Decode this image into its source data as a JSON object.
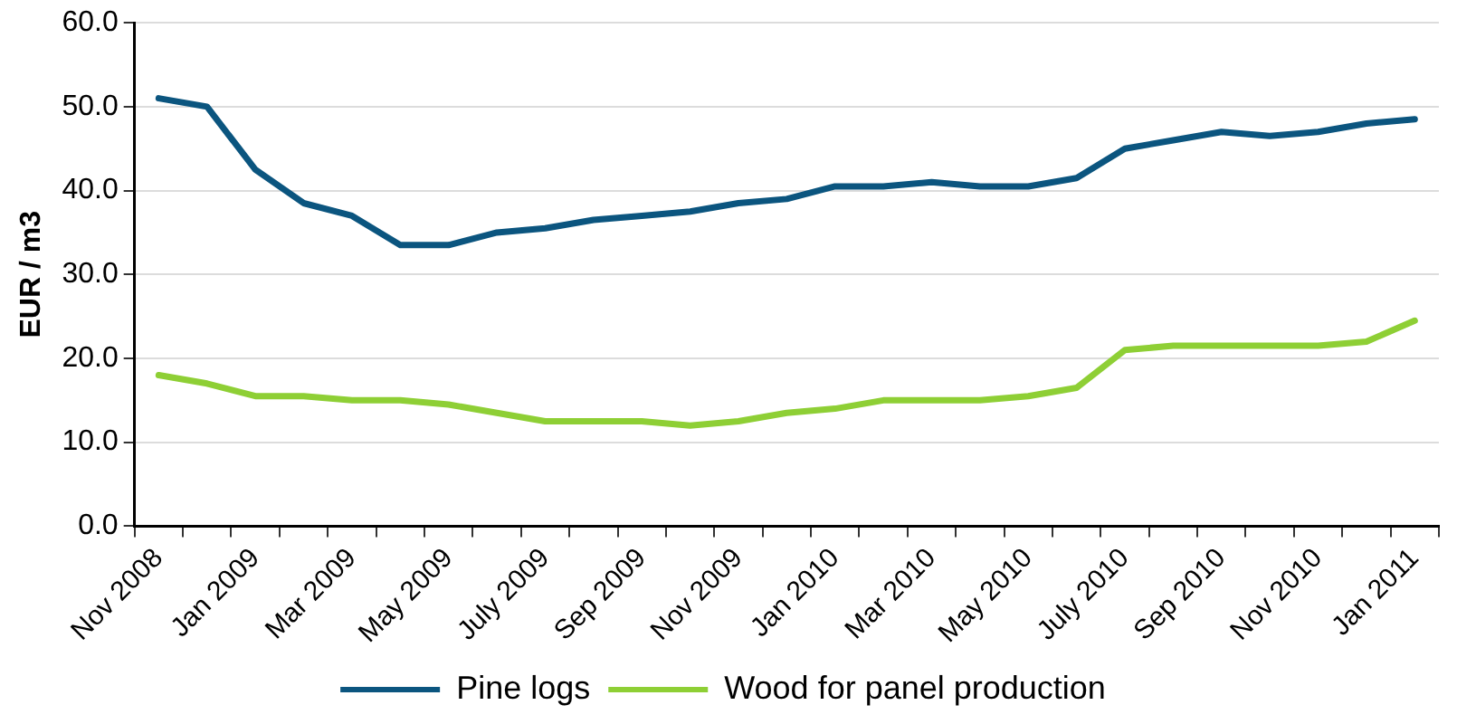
{
  "chart_data": {
    "type": "line",
    "ylabel": "EUR / m3",
    "categories": [
      "Nov 2008",
      null,
      "Jan 2009",
      null,
      "Mar 2009",
      null,
      "May 2009",
      null,
      "July 2009",
      null,
      "Sep 2009",
      null,
      "Nov 2009",
      null,
      "Jan 2010",
      null,
      "Mar 2010",
      null,
      "May 2010",
      null,
      "July 2010",
      null,
      "Sep 2010",
      null,
      "Nov 2010",
      null,
      "Jan 2011"
    ],
    "series": [
      {
        "name": "Pine logs",
        "color": "#0b557f",
        "values": [
          51,
          50,
          42.5,
          38.5,
          37,
          33.5,
          33.5,
          35,
          35.5,
          36.5,
          37,
          37.5,
          38.5,
          39,
          40.5,
          40.5,
          41,
          40.5,
          40.5,
          41.5,
          45,
          46,
          47,
          46.5,
          47,
          48,
          48.5
        ]
      },
      {
        "name": "Wood for panel production",
        "color": "#8ecf35",
        "values": [
          18,
          17,
          15.5,
          15.5,
          15,
          15,
          14.5,
          13.5,
          12.5,
          12.5,
          12.5,
          12,
          12.5,
          13.5,
          14,
          15,
          15,
          15,
          15.5,
          16.5,
          21,
          21.5,
          21.5,
          21.5,
          21.5,
          22,
          24.5
        ]
      }
    ],
    "ylim": [
      0,
      60
    ],
    "yticks": [
      {
        "value": 0,
        "label": "0.0"
      },
      {
        "value": 10,
        "label": "10.0"
      },
      {
        "value": 20,
        "label": "20.0"
      },
      {
        "value": 30,
        "label": "30.0"
      },
      {
        "value": 40,
        "label": "40.0"
      },
      {
        "value": 50,
        "label": "50.0"
      },
      {
        "value": 60,
        "label": "60.0"
      }
    ],
    "grid": "y",
    "legend": "bottom",
    "marker": "none",
    "line_style": "solid"
  }
}
